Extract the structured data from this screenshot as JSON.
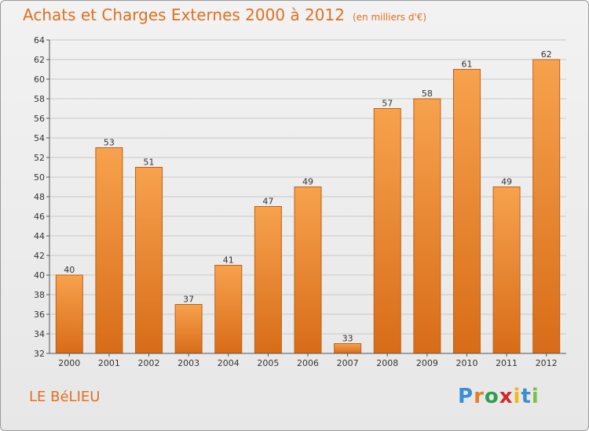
{
  "header": {
    "title": "Achats et Charges Externes 2000 à 2012",
    "unit": "(en milliers d'€)"
  },
  "footer": {
    "city": "LE BéLIEU",
    "brand_letters": [
      "P",
      "r",
      "o",
      "x",
      "i",
      "t",
      "i"
    ],
    "brand_colors": [
      "#3a8fd0",
      "#e67e22",
      "#2e9e4f",
      "#d4282a",
      "#f1b81a",
      "#3a8fd0",
      "#7cc142"
    ]
  },
  "chart_data": {
    "type": "bar",
    "title": "Achats et Charges Externes 2000 à 2012",
    "xlabel": "",
    "ylabel": "",
    "categories": [
      "2000",
      "2001",
      "2002",
      "2003",
      "2004",
      "2005",
      "2006",
      "2007",
      "2008",
      "2009",
      "2010",
      "2011",
      "2012"
    ],
    "values": [
      40,
      53,
      51,
      37,
      41,
      47,
      49,
      33,
      57,
      58,
      61,
      49,
      62
    ],
    "ylim": [
      32,
      64
    ],
    "yticks": [
      32,
      34,
      36,
      38,
      40,
      42,
      44,
      46,
      48,
      50,
      52,
      54,
      56,
      58,
      60,
      62,
      64
    ],
    "grid": true,
    "colors": {
      "bar_top": "#f7a24e",
      "bar_bottom": "#d86c18",
      "bar_edge": "#c05f10",
      "grid": "#c8c8c8"
    }
  }
}
